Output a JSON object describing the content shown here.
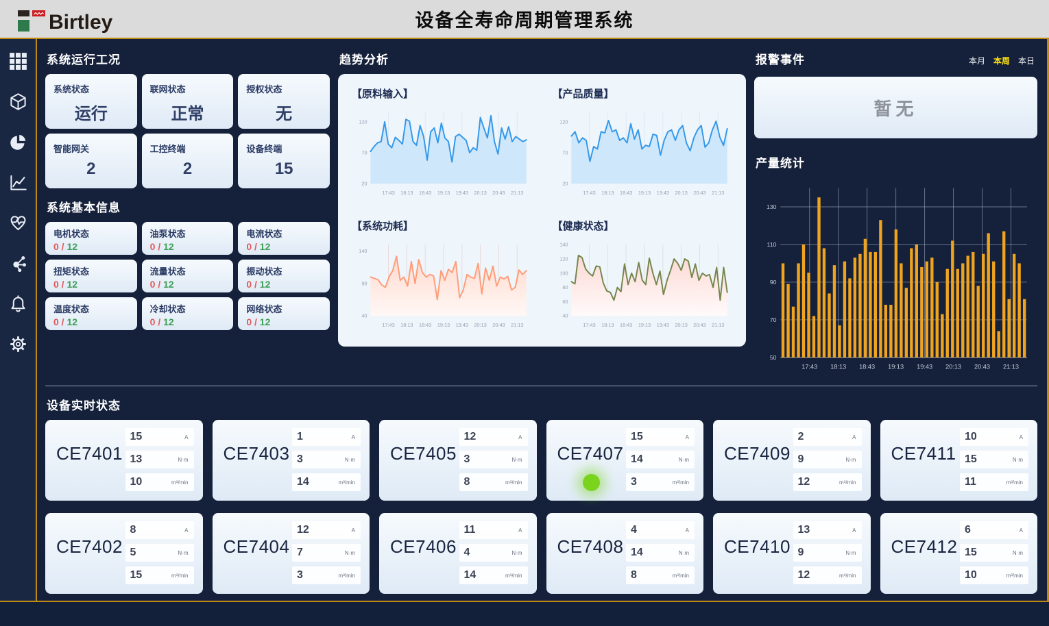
{
  "header": {
    "logo_text": "Birtley",
    "title": "设备全寿命周期管理系统"
  },
  "sidebar": {
    "icons": [
      "grid-menu-icon",
      "cube-icon",
      "pie-chart-icon",
      "line-chart-icon",
      "health-pulse-icon",
      "network-icon",
      "bell-icon",
      "gear-icon"
    ]
  },
  "ops": {
    "section_title": "系统运行工况",
    "cards": [
      {
        "label": "系统状态",
        "value": "运行"
      },
      {
        "label": "联网状态",
        "value": "正常"
      },
      {
        "label": "授权状态",
        "value": "无"
      },
      {
        "label": "智能网关",
        "value": "2"
      },
      {
        "label": "工控终端",
        "value": "2"
      },
      {
        "label": "设备终端",
        "value": "15"
      }
    ]
  },
  "basic": {
    "section_title": "系统基本信息",
    "cards": [
      {
        "label": "电机状态",
        "value_red": "0 /",
        "value_green": "12"
      },
      {
        "label": "油泵状态",
        "value_red": "0 /",
        "value_green": "12"
      },
      {
        "label": "电流状态",
        "value_red": "0 /",
        "value_green": "12"
      },
      {
        "label": "扭矩状态",
        "value_red": "0 /",
        "value_green": "12"
      },
      {
        "label": "流量状态",
        "value_red": "0 /",
        "value_green": "12"
      },
      {
        "label": "振动状态",
        "value_red": "0 /",
        "value_green": "12"
      },
      {
        "label": "温度状态",
        "value_red": "0 /",
        "value_green": "12"
      },
      {
        "label": "冷却状态",
        "value_red": "0 /",
        "value_green": "12"
      },
      {
        "label": "网络状态",
        "value_red": "0 /",
        "value_green": "12"
      }
    ]
  },
  "trend": {
    "section_title": "趋势分析"
  },
  "alarm": {
    "section_title": "报警事件",
    "tabs": [
      {
        "label": "本月",
        "active": false
      },
      {
        "label": "本周",
        "active": true
      },
      {
        "label": "本日",
        "active": false
      }
    ],
    "empty_text": "暂无"
  },
  "production": {
    "section_title": "产量统计"
  },
  "devices": {
    "section_title": "设备实时状态",
    "units": [
      "A",
      "N·m",
      "m³/min"
    ],
    "cards": [
      {
        "name": "CE7401",
        "values": [
          15,
          13,
          10
        ],
        "indicator": false
      },
      {
        "name": "CE7403",
        "values": [
          1,
          3,
          14
        ],
        "indicator": false
      },
      {
        "name": "CE7405",
        "values": [
          12,
          3,
          8
        ],
        "indicator": false
      },
      {
        "name": "CE7407",
        "values": [
          15,
          14,
          3
        ],
        "indicator": true
      },
      {
        "name": "CE7409",
        "values": [
          2,
          9,
          12
        ],
        "indicator": false
      },
      {
        "name": "CE7411",
        "values": [
          10,
          15,
          11
        ],
        "indicator": false
      },
      {
        "name": "CE7402",
        "values": [
          8,
          5,
          15
        ],
        "indicator": false
      },
      {
        "name": "CE7404",
        "values": [
          12,
          7,
          3
        ],
        "indicator": false
      },
      {
        "name": "CE7406",
        "values": [
          11,
          4,
          14
        ],
        "indicator": false
      },
      {
        "name": "CE7408",
        "values": [
          4,
          14,
          8
        ],
        "indicator": false
      },
      {
        "name": "CE7410",
        "values": [
          13,
          9,
          12
        ],
        "indicator": false
      },
      {
        "name": "CE7412",
        "values": [
          6,
          15,
          10
        ],
        "indicator": false
      }
    ]
  },
  "colors": {
    "accent_gold": "#bf8a14",
    "tab_active_yellow": "#ffe312",
    "indicator_green": "#7ad41d",
    "alarm_red": "#e25a5a",
    "ok_green": "#3f9e57"
  },
  "chart_data": [
    {
      "type": "line",
      "title": "【原料输入】",
      "color": "#3398ea",
      "fill": {
        "type": "solid",
        "color": "#cfe7fa"
      },
      "grid": "rgba(140,160,190,0.15)",
      "ylim": [
        20,
        135
      ],
      "yticks": [
        20,
        70,
        120
      ],
      "x_ticks": [
        "17:43",
        "18:13",
        "18:43",
        "19:13",
        "19:43",
        "20:13",
        "20:43",
        "21:13"
      ],
      "values": [
        72,
        80,
        86,
        88,
        120,
        84,
        78,
        95,
        90,
        84,
        124,
        121,
        88,
        82,
        114,
        96,
        58,
        104,
        110,
        86,
        118,
        94,
        88,
        55,
        96,
        100,
        95,
        90,
        70,
        78,
        74,
        127,
        110,
        94,
        130,
        88,
        68,
        110,
        92,
        112,
        88,
        96,
        92,
        88,
        91
      ]
    },
    {
      "type": "line",
      "title": "【产品质量】",
      "color": "#3398ea",
      "fill": {
        "type": "solid",
        "color": "#cfe7fa"
      },
      "grid": "rgba(140,160,190,0.15)",
      "ylim": [
        20,
        135
      ],
      "yticks": [
        20,
        70,
        120
      ],
      "x_ticks": [
        "17:43",
        "18:13",
        "18:43",
        "19:13",
        "19:43",
        "20:13",
        "20:43",
        "21:13"
      ],
      "values": [
        97,
        104,
        86,
        94,
        90,
        56,
        80,
        76,
        104,
        102,
        122,
        104,
        107,
        90,
        94,
        86,
        117,
        92,
        107,
        76,
        82,
        80,
        100,
        98,
        66,
        90,
        104,
        107,
        90,
        107,
        114,
        86,
        73,
        94,
        107,
        114,
        79,
        86,
        107,
        121,
        95,
        82,
        109
      ]
    },
    {
      "type": "line",
      "title": "【系统功耗】",
      "color": "#ff9c78",
      "fill": {
        "type": "gradient",
        "from": "#ffd9cc",
        "to": "#fff8f6"
      },
      "grid": "rgba(225,170,160,0.35)",
      "ylim": [
        40,
        150
      ],
      "yticks": [
        40,
        90,
        140
      ],
      "x_ticks": [
        "17:43",
        "18:13",
        "18:43",
        "19:13",
        "19:43",
        "20:13",
        "20:43",
        "21:13"
      ],
      "values": [
        100,
        98,
        96,
        88,
        84,
        100,
        110,
        132,
        95,
        100,
        86,
        124,
        90,
        127,
        107,
        100,
        104,
        102,
        65,
        110,
        95,
        112,
        107,
        124,
        68,
        80,
        104,
        100,
        98,
        121,
        74,
        114,
        95,
        117,
        86,
        100,
        97,
        101,
        80,
        84,
        111,
        104,
        110
      ]
    },
    {
      "type": "line",
      "title": "【健康状态】",
      "color": "#75854b",
      "fill": {
        "type": "gradient",
        "from": "#fcd9d4",
        "to": "#fffafa"
      },
      "grid": "rgba(200,175,170,0.3)",
      "ylim": [
        40,
        140
      ],
      "yticks": [
        40,
        60,
        80,
        100,
        120,
        140
      ],
      "x_ticks": [
        "17:43",
        "18:13",
        "18:43",
        "19:13",
        "19:43",
        "20:13",
        "20:43",
        "21:13"
      ],
      "values": [
        88,
        85,
        125,
        122,
        106,
        100,
        96,
        110,
        109,
        86,
        75,
        73,
        62,
        80,
        74,
        113,
        84,
        100,
        88,
        115,
        90,
        84,
        121,
        100,
        84,
        103,
        70,
        90,
        104,
        120,
        114,
        104,
        120,
        117,
        94,
        113,
        90,
        100,
        96,
        98,
        80,
        108,
        62,
        108,
        73
      ]
    },
    {
      "type": "bar",
      "title": "产量统计",
      "bar_color": "#f0a41e",
      "ylim": [
        50,
        140
      ],
      "yticks": [
        50,
        70,
        90,
        110,
        130
      ],
      "x_ticks": [
        "17:43",
        "18:13",
        "18:43",
        "19:13",
        "19:43",
        "20:13",
        "20:43",
        "21:13"
      ],
      "values": [
        100,
        89,
        77,
        100,
        110,
        95,
        72,
        135,
        108,
        84,
        99,
        67,
        101,
        92,
        103,
        105,
        113,
        106,
        106,
        123,
        78,
        78,
        118,
        100,
        87,
        108,
        110,
        98,
        101,
        103,
        90,
        73,
        97,
        112,
        97,
        100,
        104,
        106,
        88,
        105,
        116,
        101,
        64,
        117,
        81,
        105,
        100,
        81
      ]
    }
  ]
}
